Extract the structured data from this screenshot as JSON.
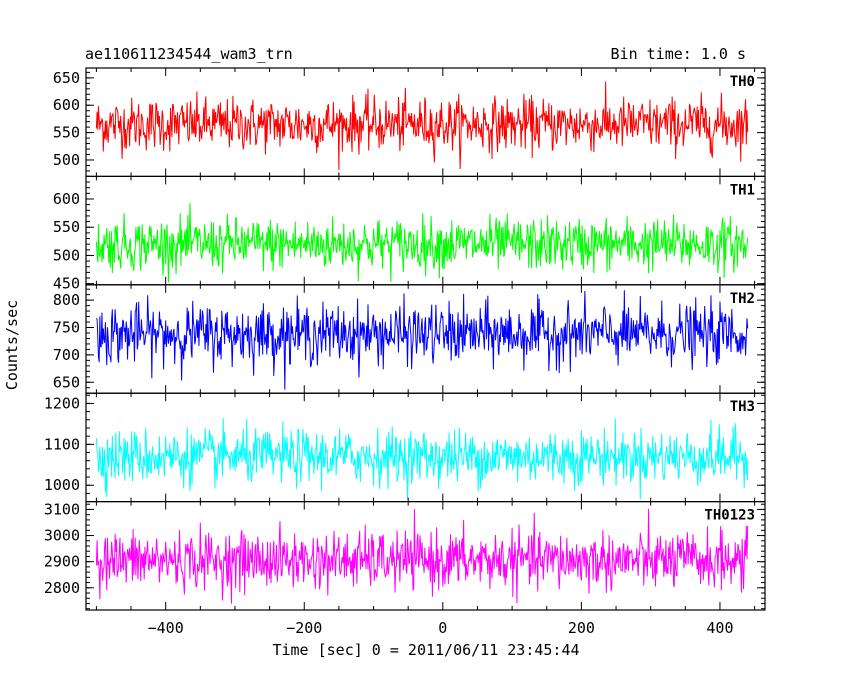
{
  "chart_data": {
    "type": "line",
    "title_left": "ae110611234544_wam3_trn",
    "title_right": "Bin time: 1.0 s",
    "xlabel": "Time [sec] 0 = 2011/06/11 23:45:44",
    "ylabel": "Counts/sec",
    "xlim": [
      -515,
      465
    ],
    "x_ticks": [
      -400,
      -200,
      0,
      200,
      400
    ],
    "x_tick_labels": [
      "−400",
      "−200",
      "0",
      "200",
      "400"
    ],
    "x_range": [
      -500,
      440
    ],
    "bin_time": 1.0,
    "grid": false,
    "panels": [
      {
        "name": "TH0",
        "color": "#ff0000",
        "ylim": [
          470,
          668
        ],
        "yticks": [
          500,
          550,
          600,
          650
        ],
        "mean": 565,
        "sigma": 24,
        "min_clip": 478,
        "max_clip": 668
      },
      {
        "name": "TH1",
        "color": "#00ff00",
        "ylim": [
          448,
          640
        ],
        "yticks": [
          450,
          500,
          550,
          600
        ],
        "mean": 520,
        "sigma": 23,
        "min_clip": 452,
        "max_clip": 630
      },
      {
        "name": "TH2",
        "color": "#0000ff",
        "ylim": [
          630,
          828
        ],
        "yticks": [
          650,
          700,
          750,
          800
        ],
        "mean": 738,
        "sigma": 27,
        "min_clip": 632,
        "max_clip": 828
      },
      {
        "name": "TH3",
        "color": "#00ffff",
        "ylim": [
          960,
          1225
        ],
        "yticks": [
          1000,
          1100,
          1200
        ],
        "mean": 1070,
        "sigma": 33,
        "min_clip": 965,
        "max_clip": 1220
      },
      {
        "name": "TH0123",
        "color": "#ff00ff",
        "ylim": [
          2715,
          3130
        ],
        "yticks": [
          2800,
          2900,
          3000,
          3100
        ],
        "mean": 2905,
        "sigma": 55,
        "min_clip": 2715,
        "max_clip": 3125
      }
    ]
  }
}
